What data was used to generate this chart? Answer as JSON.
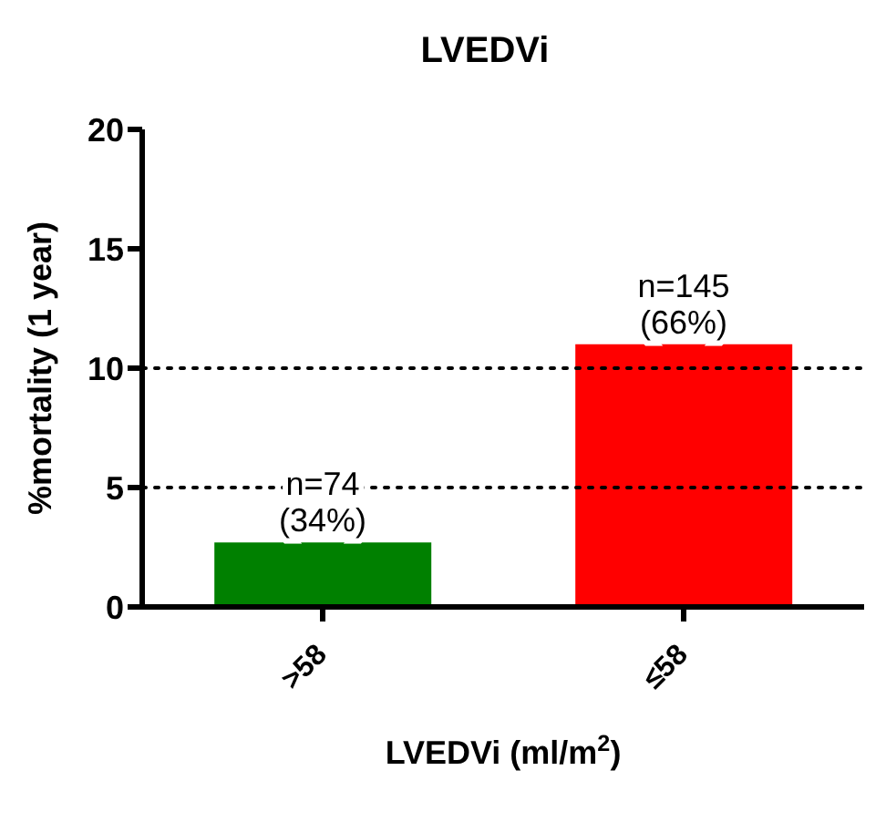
{
  "chart_data": {
    "type": "bar",
    "title": "LVEDVi",
    "xlabel": "LVEDVi (ml/m$^{2}$)",
    "ylabel": "%mortality (1 year)",
    "categories": [
      ">58",
      "≤58"
    ],
    "values": [
      2.7,
      11
    ],
    "colors": [
      "#008000",
      "#ff0000"
    ],
    "ylim": [
      0,
      20
    ],
    "yticks": [
      0,
      5,
      10,
      15,
      20
    ],
    "grid": false,
    "legend": false,
    "ref_lines": [
      {
        "axis": "y",
        "value": 5,
        "line_style": "dotted",
        "color": "#000000"
      },
      {
        "axis": "y",
        "value": 10,
        "line_style": "dotted",
        "color": "#000000"
      }
    ],
    "annotations": [
      {
        "text": "n=74\n(34%)",
        "x": ">58",
        "y": 2.7
      },
      {
        "text": "n=145\n(66%)",
        "x": "≤58",
        "y": 11
      }
    ]
  }
}
